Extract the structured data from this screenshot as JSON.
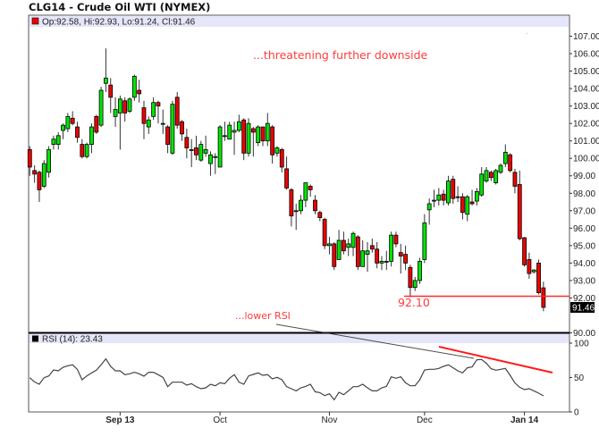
{
  "title": "CLG14 - Crude Oil WTI (NYMEX)",
  "legend": {
    "ohlc": "Op:92.58, Hi:92.93, Lo:91.24, Cl:91.46",
    "rsi": "RSI (14): 23.43"
  },
  "colors": {
    "up": "#00e600",
    "down": "#ee0000",
    "annotation": "#ff3b3b",
    "header_band": "#e6e6fa",
    "rsi_line": "#444444",
    "last_price_bg": "#000000"
  },
  "x_ticks": [
    {
      "label": "Sep 13",
      "bar": 19,
      "bold": true
    },
    {
      "label": "Oct",
      "bar": 40,
      "bold": false
    },
    {
      "label": "Nov",
      "bar": 63,
      "bold": false
    },
    {
      "label": "Dec",
      "bar": 83,
      "bold": false
    },
    {
      "label": "Jan 14",
      "bar": 104,
      "bold": true
    }
  ],
  "chart_data": [
    {
      "type": "candlestick",
      "ylim": [
        90,
        107
      ],
      "y_tick_labels": [
        "107.00",
        "106.00",
        "105.00",
        "104.00",
        "103.00",
        "102.00",
        "101.00",
        "100.00",
        "99.00",
        "98.00",
        "97.00",
        "96.00",
        "95.00",
        "94.00",
        "93.00",
        "92.00",
        "90.00"
      ],
      "last_price_label": "91.46",
      "last_price": 91.46,
      "support_level": 92.1,
      "support_label": "92.10",
      "annotations": {
        "top": "...threatening further downside",
        "rsi": "...lower RSI"
      },
      "ohlc_fields": [
        "open",
        "high",
        "low",
        "close"
      ],
      "ohlc": [
        [
          100.5,
          100.7,
          99.0,
          99.5
        ],
        [
          99.3,
          99.6,
          98.6,
          99.1
        ],
        [
          99.2,
          99.3,
          97.5,
          98.2
        ],
        [
          98.4,
          99.9,
          98.3,
          99.7
        ],
        [
          99.2,
          100.7,
          98.9,
          100.5
        ],
        [
          100.8,
          101.3,
          100.5,
          101.1
        ],
        [
          100.8,
          101.5,
          100.5,
          101.3
        ],
        [
          101.6,
          102.0,
          101.1,
          101.9
        ],
        [
          101.7,
          102.6,
          101.5,
          102.4
        ],
        [
          102.3,
          102.7,
          101.9,
          102.0
        ],
        [
          101.8,
          102.1,
          100.9,
          101.2
        ],
        [
          100.8,
          101.1,
          100.0,
          100.1
        ],
        [
          100.1,
          100.9,
          100.0,
          100.8
        ],
        [
          100.8,
          102.0,
          100.3,
          101.8
        ],
        [
          102.4,
          102.5,
          101.4,
          101.5
        ],
        [
          101.9,
          104.1,
          101.8,
          103.9
        ],
        [
          104.3,
          106.3,
          103.8,
          104.6
        ],
        [
          104.2,
          104.6,
          102.6,
          103.5
        ],
        [
          102.4,
          103.5,
          101.8,
          102.8
        ],
        [
          102.6,
          103.6,
          100.5,
          103.4
        ],
        [
          103.3,
          103.5,
          102.1,
          102.6
        ],
        [
          102.7,
          103.5,
          102.6,
          103.4
        ],
        [
          103.5,
          104.8,
          103.3,
          104.7
        ],
        [
          103.9,
          104.5,
          103.2,
          103.7
        ],
        [
          102.9,
          103.3,
          101.1,
          102.0
        ],
        [
          101.8,
          102.4,
          101.4,
          102.2
        ],
        [
          102.4,
          103.5,
          102.2,
          103.2
        ],
        [
          103.2,
          103.3,
          102.0,
          103.0
        ],
        [
          102.0,
          102.8,
          101.4,
          102.0
        ],
        [
          101.8,
          101.9,
          100.3,
          100.8
        ],
        [
          100.3,
          103.3,
          100.2,
          103.1
        ],
        [
          103.5,
          103.8,
          101.7,
          101.9
        ],
        [
          102.1,
          102.2,
          101.0,
          101.4
        ],
        [
          101.2,
          101.7,
          100.0,
          100.6
        ],
        [
          100.5,
          101.1,
          99.5,
          100.5
        ],
        [
          100.6,
          101.3,
          99.9,
          100.2
        ],
        [
          99.9,
          101.0,
          99.8,
          100.8
        ],
        [
          100.3,
          101.3,
          100.1,
          100.5
        ],
        [
          99.7,
          100.4,
          99.0,
          100.2
        ],
        [
          100.1,
          100.3,
          99.1,
          100.1
        ],
        [
          99.5,
          101.9,
          99.5,
          101.8
        ],
        [
          101.3,
          102.1,
          101.0,
          101.3
        ],
        [
          101.1,
          102.1,
          101.1,
          101.9
        ],
        [
          101.5,
          102.1,
          100.2,
          101.6
        ],
        [
          101.6,
          102.5,
          101.5,
          102.1
        ],
        [
          102.2,
          102.3,
          99.9,
          100.3
        ],
        [
          100.3,
          102.3,
          100.1,
          102.0
        ],
        [
          101.7,
          101.8,
          100.1,
          101.5
        ],
        [
          100.9,
          101.9,
          100.7,
          101.8
        ],
        [
          101.8,
          101.8,
          100.7,
          101.0
        ],
        [
          101.0,
          102.6,
          100.7,
          102.0
        ],
        [
          101.8,
          101.9,
          99.7,
          100.2
        ],
        [
          100.3,
          100.7,
          100.1,
          100.6
        ],
        [
          100.5,
          100.6,
          99.2,
          99.5
        ],
        [
          99.4,
          100.1,
          98.2,
          98.3
        ],
        [
          98.2,
          98.3,
          96.1,
          96.7
        ],
        [
          97.0,
          97.4,
          95.9,
          97.0
        ],
        [
          97.0,
          97.9,
          96.8,
          97.6
        ],
        [
          97.6,
          98.6,
          97.2,
          98.6
        ],
        [
          98.4,
          98.5,
          97.8,
          98.2
        ],
        [
          97.6,
          97.9,
          96.8,
          97.0
        ],
        [
          96.9,
          97.0,
          96.4,
          96.6
        ],
        [
          96.5,
          96.6,
          94.8,
          95.0
        ],
        [
          95.0,
          95.5,
          94.5,
          95.1
        ],
        [
          95.1,
          95.2,
          93.6,
          93.8
        ],
        [
          94.2,
          95.9,
          94.2,
          95.3
        ],
        [
          95.3,
          95.8,
          94.5,
          94.7
        ],
        [
          94.9,
          95.4,
          94.4,
          95.1
        ],
        [
          94.9,
          95.8,
          94.4,
          95.7
        ],
        [
          95.5,
          95.6,
          93.6,
          93.8
        ],
        [
          93.8,
          95.3,
          93.8,
          94.7
        ],
        [
          94.5,
          95.2,
          93.5,
          94.7
        ],
        [
          95.0,
          95.4,
          94.6,
          94.8
        ],
        [
          94.8,
          95.2,
          93.7,
          94.0
        ],
        [
          94.0,
          94.4,
          93.6,
          94.1
        ],
        [
          94.1,
          94.7,
          93.6,
          94.1
        ],
        [
          94.1,
          95.8,
          93.8,
          95.6
        ],
        [
          95.6,
          95.8,
          94.9,
          95.1
        ],
        [
          94.6,
          95.1,
          93.4,
          94.4
        ],
        [
          94.5,
          95.0,
          93.6,
          94.0
        ],
        [
          93.75,
          93.9,
          92.05,
          92.6
        ],
        [
          92.6,
          93.2,
          92.4,
          93.0
        ],
        [
          93.0,
          94.3,
          92.8,
          94.1
        ],
        [
          94.2,
          96.8,
          94.0,
          96.3
        ],
        [
          97.05,
          97.7,
          96.2,
          97.4
        ],
        [
          97.6,
          98.2,
          97.2,
          97.6
        ],
        [
          97.6,
          98.3,
          97.3,
          97.9
        ],
        [
          97.95,
          98.2,
          97.3,
          97.6
        ],
        [
          97.45,
          99.0,
          97.3,
          98.7
        ],
        [
          98.8,
          99.0,
          97.4,
          97.7
        ],
        [
          97.8,
          98.4,
          97.5,
          97.8
        ],
        [
          97.8,
          98.0,
          96.5,
          96.9
        ],
        [
          96.8,
          97.9,
          96.4,
          97.8
        ],
        [
          97.5,
          98.2,
          97.3,
          97.4
        ],
        [
          97.55,
          98.3,
          97.3,
          98.1
        ],
        [
          97.9,
          99.5,
          97.8,
          99.1
        ],
        [
          98.7,
          99.5,
          98.6,
          99.3
        ],
        [
          99.2,
          99.3,
          98.7,
          98.9
        ],
        [
          98.6,
          99.4,
          98.5,
          99.3
        ],
        [
          99.2,
          99.7,
          99.1,
          99.6
        ],
        [
          99.7,
          100.8,
          99.5,
          100.35
        ],
        [
          100.2,
          100.3,
          99.2,
          99.3
        ],
        [
          99.2,
          99.4,
          98.0,
          98.4
        ],
        [
          98.5,
          99.3,
          95.3,
          95.4
        ],
        [
          95.45,
          95.5,
          93.8,
          93.9
        ],
        [
          94.2,
          94.6,
          93.1,
          93.4
        ],
        [
          93.5,
          93.65,
          93.4,
          93.6
        ],
        [
          94.0,
          94.2,
          92.2,
          92.3
        ],
        [
          92.58,
          92.93,
          91.24,
          91.46
        ]
      ]
    },
    {
      "type": "line",
      "indicator": "RSI (14)",
      "ylim": [
        0,
        100
      ],
      "y_tick_labels": [
        "100",
        "50",
        "0"
      ],
      "values": [
        49.8,
        43.7,
        40.2,
        49.8,
        52.4,
        61.0,
        59.7,
        64.9,
        67.1,
        68.4,
        61.9,
        46.7,
        52.4,
        56.7,
        60.6,
        68.4,
        77.1,
        66.2,
        59.7,
        59.7,
        54.1,
        55.4,
        57.6,
        55.4,
        51.9,
        57.6,
        57.6,
        54.1,
        50.2,
        36.8,
        43.3,
        43.3,
        43.3,
        38.9,
        41.1,
        36.8,
        33.8,
        35.1,
        40.2,
        38.1,
        42.4,
        41.1,
        48.9,
        54.1,
        43.3,
        40.2,
        52.4,
        54.5,
        56.7,
        53.2,
        54.1,
        48.0,
        50.2,
        46.7,
        36.8,
        33.8,
        30.7,
        35.1,
        37.2,
        40.2,
        29.4,
        28.1,
        23.8,
        26.4,
        17.7,
        28.6,
        25.1,
        30.7,
        36.8,
        36.8,
        40.2,
        35.1,
        30.7,
        30.7,
        35.1,
        37.2,
        51.1,
        48.9,
        51.1,
        42.4,
        38.1,
        38.1,
        46.7,
        61.0,
        61.9,
        61.9,
        63.2,
        66.2,
        68.4,
        64.1,
        59.7,
        56.7,
        64.1,
        65.4,
        75.8,
        76.2,
        70.6,
        62.8,
        60.6,
        61.9,
        63.2,
        53.2,
        42.4,
        35.9,
        32.5,
        33.8,
        30.7,
        27.3,
        23.43
      ]
    }
  ]
}
